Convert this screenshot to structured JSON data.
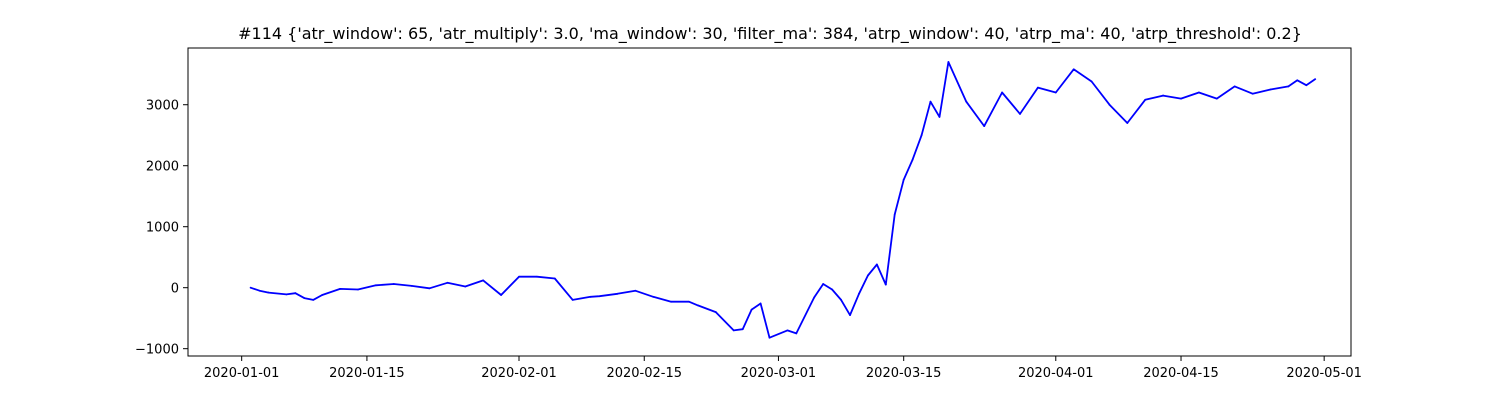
{
  "chart_data": {
    "type": "line",
    "title": "#114 {'atr_window': 65, 'atr_multiply': 3.0, 'ma_window': 30, 'filter_ma': 384, 'atrp_window': 40, 'atrp_ma': 40, 'atrp_threshold': 0.2}",
    "xlabel": "",
    "ylabel": "",
    "x_type": "date",
    "xlim": [
      "2019-12-26",
      "2020-05-04"
    ],
    "ylim": [
      -1120,
      3930
    ],
    "grid": false,
    "line_color": "#0000ff",
    "x_ticks": [
      {
        "value": "2020-01-01",
        "label": "2020-01-01"
      },
      {
        "value": "2020-01-15",
        "label": "2020-01-15"
      },
      {
        "value": "2020-02-01",
        "label": "2020-02-01"
      },
      {
        "value": "2020-02-15",
        "label": "2020-02-15"
      },
      {
        "value": "2020-03-01",
        "label": "2020-03-01"
      },
      {
        "value": "2020-03-15",
        "label": "2020-03-15"
      },
      {
        "value": "2020-04-01",
        "label": "2020-04-01"
      },
      {
        "value": "2020-04-15",
        "label": "2020-04-15"
      },
      {
        "value": "2020-05-01",
        "label": "2020-05-01"
      }
    ],
    "y_ticks": [
      {
        "value": -1000,
        "label": "−1000"
      },
      {
        "value": 0,
        "label": "0"
      },
      {
        "value": 1000,
        "label": "1000"
      },
      {
        "value": 2000,
        "label": "2000"
      },
      {
        "value": 3000,
        "label": "3000"
      }
    ],
    "series": [
      {
        "x": [
          "2020-01-02",
          "2020-01-03",
          "2020-01-04",
          "2020-01-06",
          "2020-01-07",
          "2020-01-08",
          "2020-01-09",
          "2020-01-10",
          "2020-01-12",
          "2020-01-14",
          "2020-01-16",
          "2020-01-18",
          "2020-01-20",
          "2020-01-22",
          "2020-01-24",
          "2020-01-26",
          "2020-01-28",
          "2020-01-30",
          "2020-02-01",
          "2020-02-03",
          "2020-02-05",
          "2020-02-07",
          "2020-02-09",
          "2020-02-10",
          "2020-02-12",
          "2020-02-14",
          "2020-02-16",
          "2020-02-18",
          "2020-02-20",
          "2020-02-21",
          "2020-02-23",
          "2020-02-25",
          "2020-02-26",
          "2020-02-27",
          "2020-02-28",
          "2020-02-29",
          "2020-03-02",
          "2020-03-03",
          "2020-03-05",
          "2020-03-06",
          "2020-03-07",
          "2020-03-08",
          "2020-03-09",
          "2020-03-10",
          "2020-03-11",
          "2020-03-12",
          "2020-03-13",
          "2020-03-14",
          "2020-03-15",
          "2020-03-16",
          "2020-03-17",
          "2020-03-18",
          "2020-03-19",
          "2020-03-20",
          "2020-03-22",
          "2020-03-24",
          "2020-03-26",
          "2020-03-28",
          "2020-03-30",
          "2020-04-01",
          "2020-04-03",
          "2020-04-05",
          "2020-04-07",
          "2020-04-09",
          "2020-04-11",
          "2020-04-13",
          "2020-04-15",
          "2020-04-17",
          "2020-04-19",
          "2020-04-21",
          "2020-04-23",
          "2020-04-25",
          "2020-04-27",
          "2020-04-28",
          "2020-04-29",
          "2020-04-30"
        ],
        "values": [
          0,
          -50,
          -80,
          -110,
          -90,
          -170,
          -200,
          -120,
          -20,
          -30,
          40,
          60,
          30,
          -10,
          80,
          20,
          120,
          -120,
          180,
          180,
          150,
          -200,
          -150,
          -140,
          -100,
          -50,
          -150,
          -230,
          -230,
          -290,
          -400,
          -700,
          -680,
          -360,
          -260,
          -820,
          -700,
          -750,
          -160,
          60,
          -30,
          -200,
          -450,
          -100,
          200,
          380,
          50,
          1200,
          1770,
          2100,
          2500,
          3050,
          2800,
          3700,
          3050,
          2650,
          3200,
          2850,
          3280,
          3200,
          3580,
          3380,
          3000,
          2700,
          3080,
          3150,
          3100,
          3200,
          3100,
          3300,
          3180,
          3250,
          3300,
          3400,
          3320,
          3420
        ]
      }
    ]
  }
}
